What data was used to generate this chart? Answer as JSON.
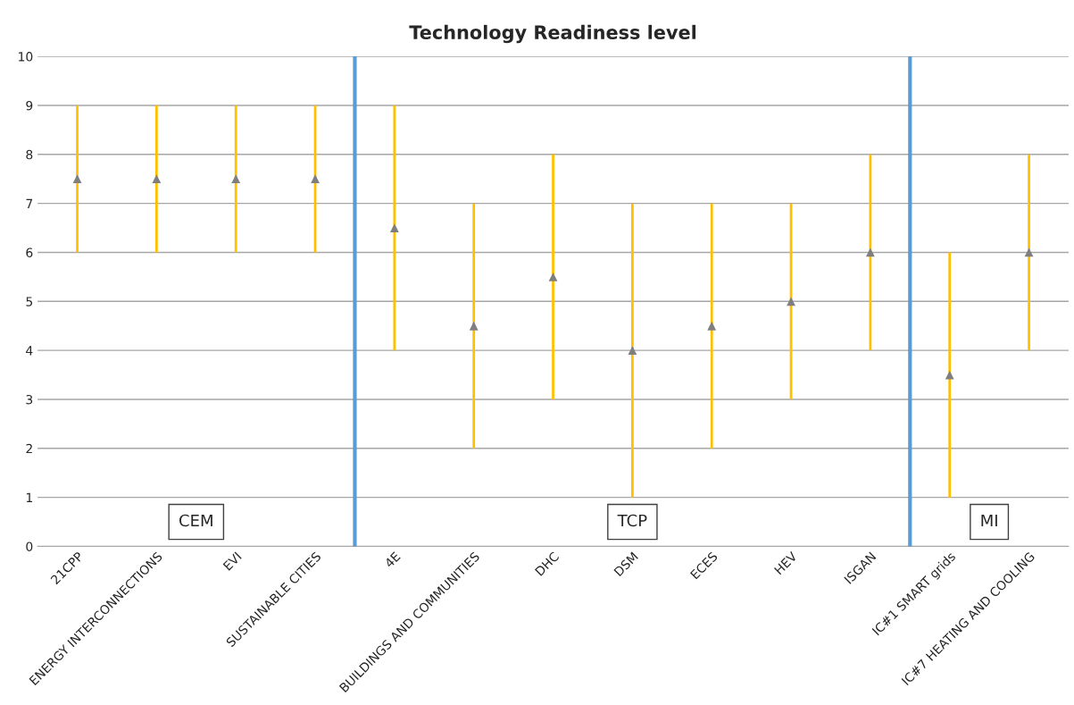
{
  "chart_data": {
    "type": "scatter",
    "title": "Technology Readiness level",
    "categories": [
      "21CPP",
      "ENERGY INTERCONNECTIONS",
      "EVI",
      "SUSTAINABLE CITIES",
      "4E",
      "BUILDINGS AND COMMUNITIES",
      "DHC",
      "DSM",
      "ECES",
      "HEV",
      "ISGAN",
      "IC#1 SMART grids",
      "IC#7 HEATING AND COOLING"
    ],
    "series": [
      {
        "color": "#7f7f7f",
        "values": [
          7.5,
          7.5,
          7.5,
          7.5,
          6.5,
          4.5,
          5.5,
          4,
          4.5,
          5,
          6,
          3.5,
          6
        ],
        "errors": [
          [
            6,
            9
          ],
          [
            6,
            9
          ],
          [
            6,
            9
          ],
          [
            6,
            9
          ],
          [
            4,
            9
          ],
          [
            2,
            7
          ],
          [
            3,
            8
          ],
          [
            1,
            7
          ],
          [
            2,
            7
          ],
          [
            3,
            7
          ],
          [
            4,
            8
          ],
          [
            1,
            6
          ],
          [
            4,
            8
          ]
        ]
      }
    ],
    "marker": "triangle",
    "ylim": [
      0,
      10
    ],
    "yticks": [
      0,
      1,
      2,
      3,
      4,
      5,
      6,
      7,
      8,
      9,
      10
    ],
    "grid": "y",
    "annotations": [
      "CEM",
      "TCP",
      "MI"
    ]
  }
}
